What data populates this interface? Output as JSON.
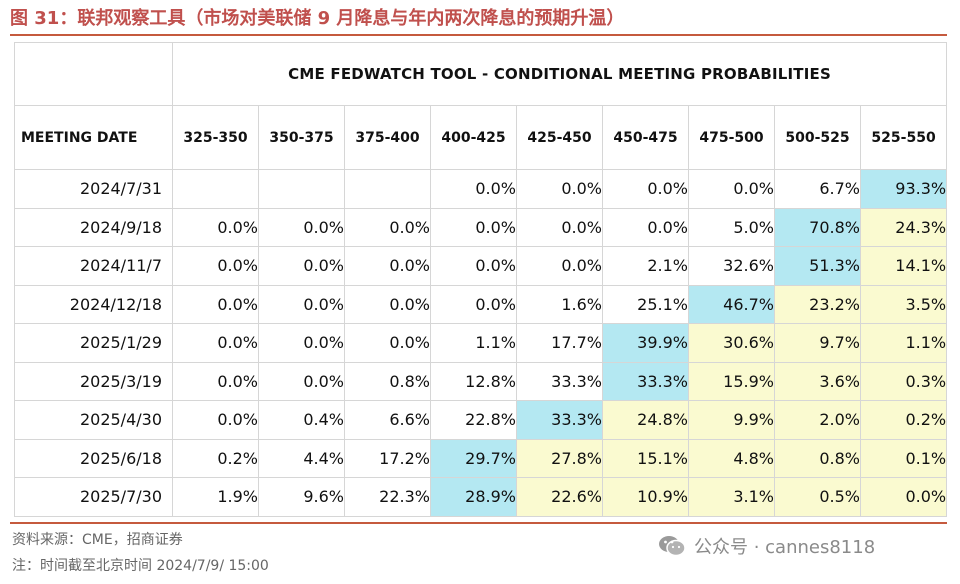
{
  "figure": {
    "title": "图 31：联邦观察工具（市场对美联储 9 月降息与年内两次降息的预期升温）"
  },
  "table": {
    "banner": "CME FEDWATCH TOOL - CONDITIONAL MEETING PROBABILITIES",
    "first_header": "MEETING DATE",
    "columns": [
      "325-350",
      "350-375",
      "375-400",
      "400-425",
      "425-450",
      "450-475",
      "475-500",
      "500-525",
      "525-550"
    ],
    "rows": [
      {
        "date": "2024/7/31",
        "cells": [
          "",
          "",
          "",
          "0.0%",
          "0.0%",
          "0.0%",
          "0.0%",
          "6.7%",
          "93.3%"
        ],
        "fills": [
          "",
          "",
          "",
          "",
          "",
          "",
          "",
          "",
          "b"
        ]
      },
      {
        "date": "2024/9/18",
        "cells": [
          "0.0%",
          "0.0%",
          "0.0%",
          "0.0%",
          "0.0%",
          "0.0%",
          "5.0%",
          "70.8%",
          "24.3%"
        ],
        "fills": [
          "",
          "",
          "",
          "",
          "",
          "",
          "",
          "b",
          "y"
        ]
      },
      {
        "date": "2024/11/7",
        "cells": [
          "0.0%",
          "0.0%",
          "0.0%",
          "0.0%",
          "0.0%",
          "2.1%",
          "32.6%",
          "51.3%",
          "14.1%"
        ],
        "fills": [
          "",
          "",
          "",
          "",
          "",
          "",
          "",
          "b",
          "y"
        ]
      },
      {
        "date": "2024/12/18",
        "cells": [
          "0.0%",
          "0.0%",
          "0.0%",
          "0.0%",
          "1.6%",
          "25.1%",
          "46.7%",
          "23.2%",
          "3.5%"
        ],
        "fills": [
          "",
          "",
          "",
          "",
          "",
          "",
          "b",
          "y",
          "y"
        ]
      },
      {
        "date": "2025/1/29",
        "cells": [
          "0.0%",
          "0.0%",
          "0.0%",
          "1.1%",
          "17.7%",
          "39.9%",
          "30.6%",
          "9.7%",
          "1.1%"
        ],
        "fills": [
          "",
          "",
          "",
          "",
          "",
          "b",
          "y",
          "y",
          "y"
        ]
      },
      {
        "date": "2025/3/19",
        "cells": [
          "0.0%",
          "0.0%",
          "0.8%",
          "12.8%",
          "33.3%",
          "33.3%",
          "15.9%",
          "3.6%",
          "0.3%"
        ],
        "fills": [
          "",
          "",
          "",
          "",
          "",
          "b",
          "y",
          "y",
          "y"
        ]
      },
      {
        "date": "2025/4/30",
        "cells": [
          "0.0%",
          "0.4%",
          "6.6%",
          "22.8%",
          "33.3%",
          "24.8%",
          "9.9%",
          "2.0%",
          "0.2%"
        ],
        "fills": [
          "",
          "",
          "",
          "",
          "b",
          "y",
          "y",
          "y",
          "y"
        ]
      },
      {
        "date": "2025/6/18",
        "cells": [
          "0.2%",
          "4.4%",
          "17.2%",
          "29.7%",
          "27.8%",
          "15.1%",
          "4.8%",
          "0.8%",
          "0.1%"
        ],
        "fills": [
          "",
          "",
          "",
          "b",
          "y",
          "y",
          "y",
          "y",
          "y"
        ]
      },
      {
        "date": "2025/7/30",
        "cells": [
          "1.9%",
          "9.6%",
          "22.3%",
          "28.9%",
          "22.6%",
          "10.9%",
          "3.1%",
          "0.5%",
          "0.0%"
        ],
        "fills": [
          "",
          "",
          "",
          "b",
          "y",
          "y",
          "y",
          "y",
          "y"
        ]
      }
    ]
  },
  "colors": {
    "title": "#c0504d",
    "rule": "#c55a3e",
    "highlight_blue": "#b4e8f2",
    "highlight_yellow": "#fafad0"
  },
  "footer": {
    "source": "资料来源：CME，招商证券",
    "note": "注：时间截至北京时间 2024/7/9/ 15:00",
    "watermark": "公众号 · cannes8118",
    "watermark_icon": "wechat-icon"
  }
}
